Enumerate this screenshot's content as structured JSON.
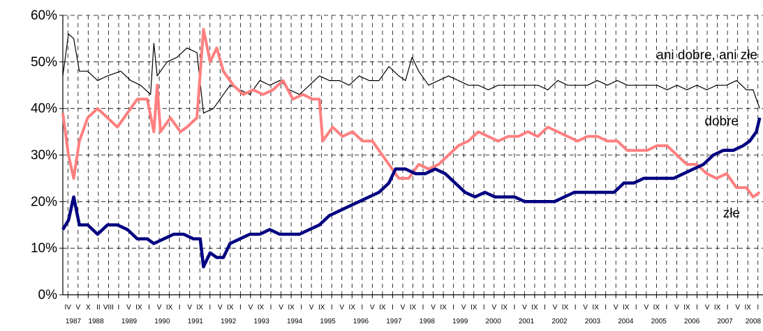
{
  "chart_data": {
    "type": "line",
    "y_unit": "%",
    "ylim": [
      0,
      60
    ],
    "yticks": [
      "0%",
      "10%",
      "20%",
      "30%",
      "40%",
      "50%",
      "60%"
    ],
    "grid": {
      "vertical_dashed": true,
      "horizontal_dashed": true
    },
    "x_range": [
      "1987-IV",
      "2008-II"
    ],
    "x_month_labels": [
      "IV",
      "V",
      "X",
      "II",
      "VIII",
      "I",
      "V",
      "IX",
      "I",
      "V",
      "IX",
      "I",
      "V",
      "IX",
      "I",
      "V",
      "IX",
      "I",
      "V",
      "IX",
      "I",
      "V",
      "IX",
      "I",
      "V",
      "IX",
      "I",
      "V",
      "IX",
      "I",
      "V",
      "IX",
      "I",
      "V",
      "IX",
      "I",
      "V",
      "IX",
      "I",
      "V",
      "IX",
      "I",
      "V",
      "IX",
      "I",
      "V",
      "IX",
      "I",
      "V",
      "IX",
      "I",
      "V",
      "IX",
      "I",
      "V",
      "IX",
      "I",
      "V",
      "IX",
      "I",
      "V",
      "IX",
      "I",
      "V",
      "IX",
      "I",
      "V",
      "IX",
      "I"
    ],
    "x_year_labels": [
      "1987",
      "1988",
      "1989",
      "1990",
      "1991",
      "1992",
      "1993",
      "1994",
      "1995",
      "1996",
      "1997",
      "1998",
      "1999",
      "2000",
      "2001",
      "2002",
      "2003",
      "2004",
      "2005",
      "2006",
      "2007",
      "2008"
    ],
    "series": [
      {
        "name": "ani dobre, ani złe",
        "color": "#000000",
        "points": [
          [
            1987.25,
            47
          ],
          [
            1987.42,
            56
          ],
          [
            1987.58,
            55
          ],
          [
            1987.75,
            48
          ],
          [
            1988.0,
            48
          ],
          [
            1988.3,
            46
          ],
          [
            1988.6,
            47
          ],
          [
            1989.0,
            48
          ],
          [
            1989.3,
            46
          ],
          [
            1989.6,
            45
          ],
          [
            1989.9,
            43
          ],
          [
            1990.0,
            54
          ],
          [
            1990.1,
            47
          ],
          [
            1990.4,
            50
          ],
          [
            1990.7,
            51
          ],
          [
            1991.0,
            53
          ],
          [
            1991.3,
            52
          ],
          [
            1991.5,
            39
          ],
          [
            1991.8,
            40
          ],
          [
            1992.0,
            42
          ],
          [
            1992.3,
            45
          ],
          [
            1992.6,
            44
          ],
          [
            1992.9,
            43
          ],
          [
            1993.2,
            46
          ],
          [
            1993.5,
            45
          ],
          [
            1993.8,
            46
          ],
          [
            1994.1,
            44
          ],
          [
            1994.4,
            43
          ],
          [
            1994.7,
            45
          ],
          [
            1995.0,
            47
          ],
          [
            1995.3,
            46
          ],
          [
            1995.6,
            46
          ],
          [
            1995.9,
            45
          ],
          [
            1996.2,
            47
          ],
          [
            1996.5,
            46
          ],
          [
            1996.8,
            46
          ],
          [
            1997.1,
            49
          ],
          [
            1997.4,
            47
          ],
          [
            1997.6,
            46
          ],
          [
            1997.8,
            51
          ],
          [
            1998.0,
            48
          ],
          [
            1998.3,
            45
          ],
          [
            1998.6,
            46
          ],
          [
            1998.9,
            47
          ],
          [
            1999.2,
            46
          ],
          [
            1999.5,
            45
          ],
          [
            1999.8,
            45
          ],
          [
            2000.1,
            44
          ],
          [
            2000.4,
            45
          ],
          [
            2000.7,
            45
          ],
          [
            2001.0,
            45
          ],
          [
            2001.3,
            45
          ],
          [
            2001.6,
            45
          ],
          [
            2001.9,
            44
          ],
          [
            2002.2,
            46
          ],
          [
            2002.5,
            45
          ],
          [
            2002.8,
            45
          ],
          [
            2003.1,
            45
          ],
          [
            2003.4,
            46
          ],
          [
            2003.7,
            45
          ],
          [
            2004.0,
            46
          ],
          [
            2004.3,
            45
          ],
          [
            2004.6,
            45
          ],
          [
            2004.9,
            45
          ],
          [
            2005.2,
            45
          ],
          [
            2005.5,
            44
          ],
          [
            2005.8,
            45
          ],
          [
            2006.1,
            44
          ],
          [
            2006.4,
            45
          ],
          [
            2006.7,
            44
          ],
          [
            2007.0,
            45
          ],
          [
            2007.3,
            45
          ],
          [
            2007.6,
            46
          ],
          [
            2007.9,
            44
          ],
          [
            2008.1,
            44
          ],
          [
            2008.3,
            40
          ]
        ]
      },
      {
        "name": "dobre",
        "color": "#ff7f7f",
        "points": [
          [
            1987.25,
            39
          ],
          [
            1987.42,
            30
          ],
          [
            1987.58,
            25
          ],
          [
            1987.75,
            33
          ],
          [
            1988.0,
            38
          ],
          [
            1988.3,
            40
          ],
          [
            1988.6,
            38
          ],
          [
            1988.9,
            36
          ],
          [
            1989.2,
            39
          ],
          [
            1989.5,
            42
          ],
          [
            1989.8,
            42
          ],
          [
            1990.0,
            35
          ],
          [
            1990.1,
            45
          ],
          [
            1990.2,
            35
          ],
          [
            1990.5,
            38
          ],
          [
            1990.8,
            35
          ],
          [
            1991.0,
            36
          ],
          [
            1991.3,
            38
          ],
          [
            1991.5,
            57
          ],
          [
            1991.7,
            50
          ],
          [
            1991.9,
            53
          ],
          [
            1992.1,
            48
          ],
          [
            1992.4,
            45
          ],
          [
            1992.7,
            43
          ],
          [
            1993.0,
            44
          ],
          [
            1993.3,
            43
          ],
          [
            1993.6,
            44
          ],
          [
            1993.9,
            46
          ],
          [
            1994.2,
            42
          ],
          [
            1994.5,
            43
          ],
          [
            1994.8,
            42
          ],
          [
            1995.0,
            42
          ],
          [
            1995.1,
            33
          ],
          [
            1995.4,
            36
          ],
          [
            1995.7,
            34
          ],
          [
            1996.0,
            35
          ],
          [
            1996.3,
            33
          ],
          [
            1996.6,
            33
          ],
          [
            1996.9,
            30
          ],
          [
            1997.1,
            28
          ],
          [
            1997.4,
            25
          ],
          [
            1997.7,
            25
          ],
          [
            1998.0,
            28
          ],
          [
            1998.3,
            27
          ],
          [
            1998.6,
            28
          ],
          [
            1998.9,
            30
          ],
          [
            1999.2,
            32
          ],
          [
            1999.5,
            33
          ],
          [
            1999.8,
            35
          ],
          [
            2000.1,
            34
          ],
          [
            2000.4,
            33
          ],
          [
            2000.7,
            34
          ],
          [
            2001.0,
            34
          ],
          [
            2001.3,
            35
          ],
          [
            2001.6,
            34
          ],
          [
            2001.9,
            36
          ],
          [
            2002.2,
            35
          ],
          [
            2002.5,
            34
          ],
          [
            2002.8,
            33
          ],
          [
            2003.1,
            34
          ],
          [
            2003.4,
            34
          ],
          [
            2003.7,
            33
          ],
          [
            2004.0,
            33
          ],
          [
            2004.3,
            31
          ],
          [
            2004.6,
            31
          ],
          [
            2004.9,
            31
          ],
          [
            2005.2,
            32
          ],
          [
            2005.5,
            32
          ],
          [
            2005.8,
            30
          ],
          [
            2006.1,
            28
          ],
          [
            2006.4,
            28
          ],
          [
            2006.7,
            26
          ],
          [
            2007.0,
            25
          ],
          [
            2007.3,
            26
          ],
          [
            2007.6,
            23
          ],
          [
            2007.9,
            23
          ],
          [
            2008.1,
            21
          ],
          [
            2008.3,
            22
          ]
        ]
      },
      {
        "name": "złe",
        "color": "#000080",
        "points": [
          [
            1987.25,
            14
          ],
          [
            1987.42,
            16
          ],
          [
            1987.58,
            21
          ],
          [
            1987.75,
            15
          ],
          [
            1988.0,
            15
          ],
          [
            1988.3,
            13
          ],
          [
            1988.6,
            15
          ],
          [
            1988.9,
            15
          ],
          [
            1989.2,
            14
          ],
          [
            1989.5,
            12
          ],
          [
            1989.8,
            12
          ],
          [
            1990.0,
            11
          ],
          [
            1990.3,
            12
          ],
          [
            1990.6,
            13
          ],
          [
            1990.9,
            13
          ],
          [
            1991.2,
            12
          ],
          [
            1991.4,
            12
          ],
          [
            1991.5,
            6
          ],
          [
            1991.7,
            9
          ],
          [
            1991.9,
            8
          ],
          [
            1992.1,
            8
          ],
          [
            1992.3,
            11
          ],
          [
            1992.6,
            12
          ],
          [
            1992.9,
            13
          ],
          [
            1993.2,
            13
          ],
          [
            1993.5,
            14
          ],
          [
            1993.8,
            13
          ],
          [
            1994.1,
            13
          ],
          [
            1994.4,
            13
          ],
          [
            1994.7,
            14
          ],
          [
            1995.0,
            15
          ],
          [
            1995.3,
            17
          ],
          [
            1995.6,
            18
          ],
          [
            1995.9,
            19
          ],
          [
            1996.2,
            20
          ],
          [
            1996.5,
            21
          ],
          [
            1996.8,
            22
          ],
          [
            1997.1,
            24
          ],
          [
            1997.3,
            27
          ],
          [
            1997.6,
            27
          ],
          [
            1997.9,
            26
          ],
          [
            1998.2,
            26
          ],
          [
            1998.5,
            27
          ],
          [
            1998.8,
            26
          ],
          [
            1999.1,
            24
          ],
          [
            1999.4,
            22
          ],
          [
            1999.7,
            21
          ],
          [
            2000.0,
            22
          ],
          [
            2000.3,
            21
          ],
          [
            2000.6,
            21
          ],
          [
            2000.9,
            21
          ],
          [
            2001.2,
            20
          ],
          [
            2001.5,
            20
          ],
          [
            2001.8,
            20
          ],
          [
            2002.1,
            20
          ],
          [
            2002.4,
            21
          ],
          [
            2002.7,
            22
          ],
          [
            2003.0,
            22
          ],
          [
            2003.3,
            22
          ],
          [
            2003.6,
            22
          ],
          [
            2003.9,
            22
          ],
          [
            2004.2,
            24
          ],
          [
            2004.5,
            24
          ],
          [
            2004.8,
            25
          ],
          [
            2005.1,
            25
          ],
          [
            2005.4,
            25
          ],
          [
            2005.7,
            25
          ],
          [
            2006.0,
            26
          ],
          [
            2006.3,
            27
          ],
          [
            2006.6,
            28
          ],
          [
            2006.9,
            30
          ],
          [
            2007.2,
            31
          ],
          [
            2007.5,
            31
          ],
          [
            2007.8,
            32
          ],
          [
            2008.0,
            33
          ],
          [
            2008.2,
            35
          ],
          [
            2008.3,
            38
          ]
        ]
      }
    ],
    "annotations": [
      "ani dobre, ani złe",
      "dobre",
      "złe"
    ]
  }
}
